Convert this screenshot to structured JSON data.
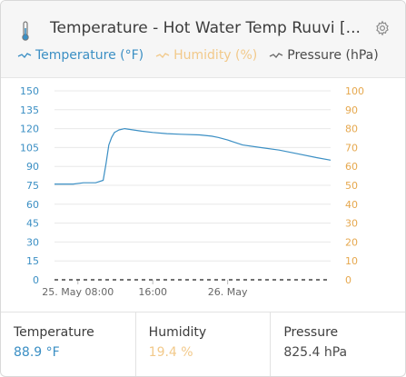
{
  "header": {
    "title": "Temperature - Hot Water Temp Ruuvi [...",
    "icon": "thermometer-icon",
    "settings_icon": "gear-icon"
  },
  "legend": [
    {
      "label": "Temperature (°F)",
      "color": "#3b8fc4"
    },
    {
      "label": "Humidity (%)",
      "color": "#f2c98a"
    },
    {
      "label": "Pressure (hPa)",
      "color": "#6a6a6a"
    }
  ],
  "colors": {
    "temperature": "#3b8fc4",
    "humidity": "#e6a84e",
    "humidity_light": "#f2c98a",
    "pressure": "#444444",
    "grid": "#e8e8e8"
  },
  "chart_data": {
    "type": "line",
    "x_tick_labels": [
      "25. May 08:00",
      "16:00",
      "26. May"
    ],
    "y_left_ticks": [
      "150",
      "135",
      "120",
      "105",
      "90",
      "75",
      "60",
      "45",
      "30",
      "15",
      "0"
    ],
    "y_right_ticks": [
      "100",
      "90",
      "80",
      "70",
      "60",
      "50",
      "40",
      "30",
      "20",
      "10",
      "0"
    ],
    "ylim_left": [
      0,
      150
    ],
    "ylim_right": [
      0,
      100
    ],
    "xlim_hours": [
      -2.5,
      27
    ],
    "x_tick_hours": [
      0,
      8,
      16
    ],
    "series": [
      {
        "name": "Temperature (°F)",
        "axis": "left",
        "style": "solid",
        "x_hours": [
          -2.5,
          -1.5,
          -0.5,
          0.6,
          1.9,
          2.7,
          3.0,
          3.3,
          3.6,
          3.9,
          4.4,
          5.0,
          5.9,
          6.8,
          8.0,
          9.5,
          11.0,
          13.0,
          14.3,
          15.0,
          16.0,
          17.6,
          19.5,
          21.5,
          23.5,
          25.5,
          27.0
        ],
        "values": [
          76,
          76,
          76,
          77,
          77,
          79,
          92,
          107,
          113,
          117,
          119,
          120,
          119,
          118,
          117,
          116,
          115.5,
          115,
          114,
          113,
          111,
          107,
          105,
          103,
          100,
          97,
          95
        ]
      },
      {
        "name": "Pressure (hPa)",
        "axis": "left",
        "style": "dashed",
        "x_hours": [
          -2.5,
          27
        ],
        "values": [
          0,
          0
        ]
      }
    ]
  },
  "stats": [
    {
      "label": "Temperature",
      "value": "88.9 °F",
      "color": "#3b8fc4"
    },
    {
      "label": "Humidity",
      "value": "19.4 %",
      "color": "#f2c98a"
    },
    {
      "label": "Pressure",
      "value": "825.4 hPa",
      "color": "#4a4a4a"
    }
  ]
}
